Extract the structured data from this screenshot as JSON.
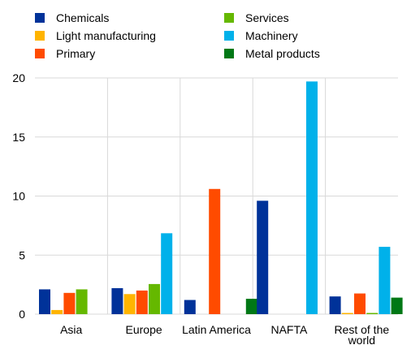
{
  "chart_data": {
    "type": "bar",
    "categories": [
      "Asia",
      "Europe",
      "Latin America",
      "NAFTA",
      "Rest of the world"
    ],
    "category_lines": [
      [
        "Asia"
      ],
      [
        "Europe"
      ],
      [
        "Latin America"
      ],
      [
        "NAFTA"
      ],
      [
        "Rest of the",
        "world"
      ]
    ],
    "ylim": [
      0,
      20
    ],
    "yticks": [
      0,
      5,
      10,
      15,
      20
    ],
    "grid": true,
    "legend_position": "top",
    "series": [
      {
        "name": "Chemicals",
        "color": "#003299",
        "values": [
          2.1,
          2.2,
          1.2,
          9.6,
          1.5
        ]
      },
      {
        "name": "Light manufacturing",
        "color": "#FFB400",
        "values": [
          0.35,
          1.7,
          0,
          0,
          0.1
        ]
      },
      {
        "name": "Primary",
        "color": "#FF4B00",
        "values": [
          1.8,
          2.0,
          10.6,
          0,
          1.75
        ]
      },
      {
        "name": "Services",
        "color": "#65B800",
        "values": [
          2.1,
          2.55,
          0,
          0,
          0.1
        ]
      },
      {
        "name": "Machinery",
        "color": "#00B1EA",
        "values": [
          0,
          6.85,
          0,
          19.7,
          5.7
        ]
      },
      {
        "name": "Metal products",
        "color": "#007816",
        "values": [
          0,
          0,
          1.3,
          0,
          1.4
        ]
      }
    ]
  }
}
